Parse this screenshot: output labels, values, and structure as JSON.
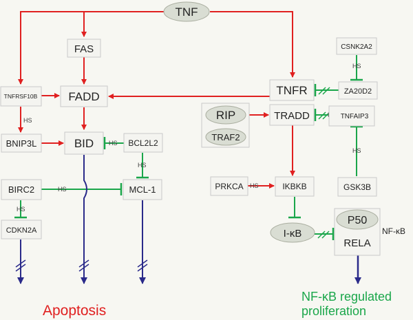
{
  "nodes": {
    "tnf": "TNF",
    "fas": "FAS",
    "fadd": "FADD",
    "tnfrsf10b": "TNFRSF10B",
    "bnip3l": "BNIP3L",
    "bid": "BID",
    "bcl2l2": "BCL2L2",
    "mcl1": "MCL-1",
    "birc2": "BIRC2",
    "cdkn2a": "CDKN2A",
    "tnfr": "TNFR",
    "tradd": "TRADD",
    "rip": "RIP",
    "traf2": "TRAF2",
    "csnk2a2": "CSNK2A2",
    "za20d2": "ZA20D2",
    "tnfaip3": "TNFAIP3",
    "prkca": "PRKCA",
    "ikbkb": "IKBKB",
    "gsk3b": "GSK3B",
    "ikb": "I-κB",
    "p50": "P50",
    "rela": "RELA",
    "nfkb": "NF-κB"
  },
  "edge_label": "HS",
  "outputs": {
    "apoptosis": "Apoptosis",
    "proliferation_line1": "NF-κB regulated",
    "proliferation_line2": "proliferation"
  },
  "colors": {
    "activation": "#e02020",
    "inhibition": "#1aa64a",
    "output": "#2a2a8a",
    "apoptosis_text": "#e02020",
    "proliferation_text": "#1aa64a"
  }
}
